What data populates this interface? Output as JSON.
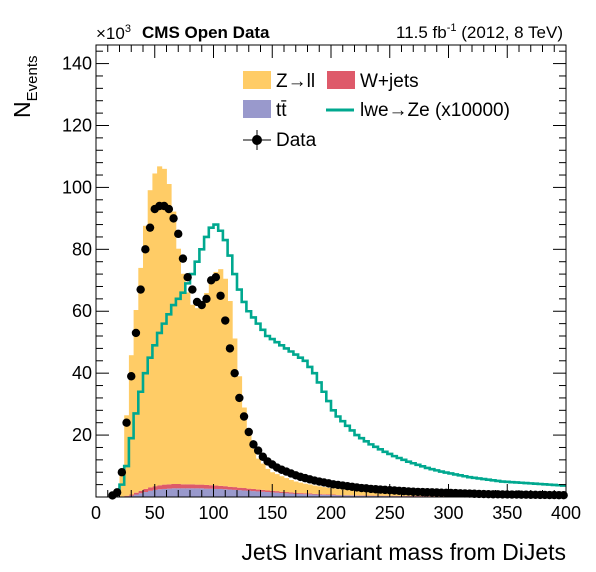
{
  "header": {
    "exp_multiplier": "×10",
    "exp_power": "3",
    "brand": "CMS Open Data",
    "lumi_value": "11.5 fb",
    "lumi_exp": "-1",
    "lumi_rest": " (2012, 8 TeV)"
  },
  "chart_data": {
    "type": "bar",
    "xlabel": "JetS Invariant mass from DiJets",
    "ylabel_main": "N",
    "ylabel_sub": "Events",
    "xlim": [
      0,
      400
    ],
    "ylim": [
      0,
      146
    ],
    "y_unit": "×10^3",
    "bin_width": 4,
    "x_ticks": [
      "0",
      "50",
      "100",
      "150",
      "200",
      "250",
      "300",
      "350",
      "400"
    ],
    "y_ticks": [
      "20",
      "40",
      "60",
      "80",
      "100",
      "120",
      "140"
    ],
    "legend": {
      "zll": "Z→ll",
      "wjets": "W+jets",
      "ttbar": "tt̄",
      "signal": "lwe→Ze (x10000)",
      "data": "Data"
    },
    "legend_placement": "top-center",
    "colors": {
      "zll": "#ffcc66",
      "wjets": "#de5a6a",
      "ttbar": "#9999cc",
      "signal": "#00a88f",
      "data": "#000000"
    },
    "series": [
      {
        "name": "Z→ll",
        "stacked": true,
        "x": [
          22,
          26,
          30,
          34,
          38,
          42,
          46,
          50,
          54,
          58,
          62,
          66,
          70,
          74,
          78,
          82,
          86,
          90,
          94,
          98,
          102,
          106,
          110,
          114,
          118,
          122,
          126,
          130,
          134,
          138,
          142,
          146,
          150,
          154,
          158,
          162,
          166,
          170,
          174,
          178,
          182,
          186,
          190,
          194,
          198,
          202,
          206,
          210,
          214,
          218,
          222,
          226,
          230,
          234,
          238,
          242,
          246,
          250,
          254,
          258,
          262,
          266,
          270,
          274,
          278,
          282,
          286,
          290,
          294,
          298,
          302,
          306,
          310,
          314,
          318,
          322,
          326,
          330,
          334,
          338,
          342,
          346,
          350,
          354,
          358,
          362,
          366,
          370,
          374,
          378,
          382,
          386,
          390,
          394,
          398
        ],
        "values": [
          8,
          26,
          45,
          59,
          72,
          85,
          96,
          101,
          103,
          102,
          97,
          88,
          76,
          68,
          62,
          58,
          57,
          59,
          62,
          66,
          69,
          70,
          67,
          60,
          48,
          36,
          26,
          18,
          13,
          10,
          8.5,
          7,
          6,
          5.5,
          5,
          4.5,
          4,
          3.7,
          3.4,
          3.1,
          2.9,
          2.7,
          2.5,
          2.3,
          2.1,
          2,
          1.9,
          1.8,
          1.7,
          1.6,
          1.5,
          1.45,
          1.4,
          1.35,
          1.3,
          1.25,
          1.2,
          1.15,
          1.1,
          1.05,
          1,
          0.98,
          0.95,
          0.92,
          0.9,
          0.87,
          0.85,
          0.82,
          0.8,
          0.78,
          0.75,
          0.73,
          0.7,
          0.68,
          0.66,
          0.64,
          0.62,
          0.6,
          0.58,
          0.56,
          0.54,
          0.52,
          0.5,
          0.48,
          0.47,
          0.46,
          0.45,
          0.44,
          0.43,
          0.42,
          0.41,
          0.4,
          0.39,
          0.38,
          0.37
        ]
      },
      {
        "name": "W+jets",
        "stacked": true,
        "x": [
          22,
          26,
          30,
          34,
          38,
          42,
          46,
          50,
          54,
          58,
          62,
          66,
          70,
          74,
          78,
          82,
          86,
          90,
          94,
          98,
          102,
          106,
          110,
          114,
          118,
          122,
          126,
          130,
          134,
          138,
          142,
          146,
          150,
          154,
          158,
          162,
          166,
          170,
          174,
          178,
          182,
          186,
          190,
          194,
          198,
          202,
          206,
          210,
          214,
          218,
          222,
          226,
          230,
          234,
          238,
          242,
          246,
          250,
          254,
          258,
          262,
          266,
          270,
          274,
          278,
          282,
          286,
          290,
          294,
          298,
          302,
          306,
          310,
          314,
          318,
          322,
          326,
          330,
          334,
          338,
          342,
          346,
          350,
          354,
          358,
          362,
          366,
          370,
          374,
          378,
          382,
          386,
          390,
          394,
          398
        ],
        "values": [
          0.1,
          0.2,
          0.4,
          0.6,
          0.8,
          1,
          1.1,
          1.2,
          1.3,
          1.4,
          1.4,
          1.4,
          1.4,
          1.3,
          1.3,
          1.3,
          1.2,
          1.2,
          1.2,
          1.1,
          1.1,
          1,
          1,
          0.9,
          0.9,
          0.8,
          0.8,
          0.7,
          0.7,
          0.6,
          0.6,
          0.5,
          0.5,
          0.5,
          0.4,
          0.4,
          0.4,
          0.3,
          0.3,
          0.3,
          0.3,
          0.2,
          0.2,
          0.2,
          0.2,
          0.2,
          0.1,
          0.1,
          0.1,
          0.1,
          0.1,
          0.1,
          0.1,
          0.1,
          0.1,
          0.1,
          0.1,
          0.1,
          0.1,
          0.1,
          0.1,
          0.1,
          0.1,
          0.1,
          0.1,
          0.1,
          0.1,
          0.1,
          0.1,
          0.1,
          0.1,
          0.1,
          0.1,
          0.1,
          0.1,
          0.1,
          0.1,
          0.1,
          0.1,
          0.1,
          0.1,
          0.1,
          0.1,
          0.1,
          0.1,
          0.1,
          0.1,
          0.1,
          0.1,
          0.1,
          0.1,
          0.1,
          0.1,
          0.1,
          0.1
        ]
      },
      {
        "name": "tt̄",
        "stacked": true,
        "x": [
          22,
          26,
          30,
          34,
          38,
          42,
          46,
          50,
          54,
          58,
          62,
          66,
          70,
          74,
          78,
          82,
          86,
          90,
          94,
          98,
          102,
          106,
          110,
          114,
          118,
          122,
          126,
          130,
          134,
          138,
          142,
          146,
          150,
          154,
          158,
          162,
          166,
          170,
          174,
          178,
          182,
          186,
          190,
          194,
          198,
          202,
          206,
          210,
          214,
          218,
          222,
          226,
          230,
          234,
          238,
          242,
          246,
          250,
          254,
          258,
          262,
          266,
          270,
          274,
          278,
          282,
          286,
          290,
          294,
          298,
          302,
          306,
          310,
          314,
          318,
          322,
          326,
          330,
          334,
          338,
          342,
          346,
          350,
          354,
          358,
          362,
          366,
          370,
          374,
          378,
          382,
          386,
          390,
          394,
          398
        ],
        "values": [
          0.1,
          0.2,
          0.4,
          0.8,
          1.2,
          1.6,
          2,
          2.3,
          2.5,
          2.6,
          2.7,
          2.8,
          2.8,
          2.8,
          2.8,
          2.8,
          2.8,
          2.8,
          2.7,
          2.7,
          2.6,
          2.6,
          2.5,
          2.4,
          2.3,
          2.2,
          2.1,
          2,
          1.9,
          1.8,
          1.7,
          1.6,
          1.5,
          1.4,
          1.3,
          1.2,
          1.1,
          1,
          0.95,
          0.9,
          0.85,
          0.8,
          0.75,
          0.7,
          0.65,
          0.6,
          0.55,
          0.5,
          0.48,
          0.45,
          0.42,
          0.4,
          0.38,
          0.36,
          0.34,
          0.32,
          0.3,
          0.28,
          0.27,
          0.26,
          0.25,
          0.24,
          0.23,
          0.22,
          0.21,
          0.2,
          0.19,
          0.18,
          0.17,
          0.16,
          0.15,
          0.15,
          0.14,
          0.14,
          0.13,
          0.13,
          0.12,
          0.12,
          0.11,
          0.11,
          0.1,
          0.1,
          0.1,
          0.1,
          0.1,
          0.1,
          0.1,
          0.1,
          0.1,
          0.1,
          0.1,
          0.1,
          0.1,
          0.1,
          0.1
        ]
      },
      {
        "name": "lwe→Ze (x10000)",
        "type": "step",
        "x": [
          14,
          18,
          22,
          26,
          30,
          34,
          38,
          42,
          46,
          50,
          54,
          58,
          62,
          66,
          70,
          74,
          78,
          82,
          86,
          90,
          94,
          98,
          102,
          106,
          110,
          114,
          118,
          122,
          126,
          130,
          134,
          138,
          142,
          146,
          150,
          154,
          158,
          162,
          166,
          170,
          174,
          178,
          182,
          186,
          190,
          194,
          198,
          202,
          206,
          210,
          214,
          218,
          222,
          226,
          230,
          234,
          238,
          242,
          246,
          250,
          254,
          258,
          262,
          266,
          270,
          274,
          278,
          282,
          286,
          290,
          294,
          298,
          302,
          306,
          310,
          314,
          318,
          322,
          326,
          330,
          334,
          338,
          342,
          346,
          350,
          354,
          358,
          362,
          366,
          370,
          374,
          378,
          382,
          386,
          390,
          394,
          398
        ],
        "values": [
          0.5,
          1.5,
          4,
          10,
          19,
          27,
          34,
          40,
          45,
          49,
          53,
          56,
          59,
          62,
          64,
          66,
          69,
          72,
          76,
          80,
          84,
          87,
          88,
          86,
          83,
          78,
          72,
          67,
          63,
          60,
          58,
          56,
          54,
          52,
          51,
          50,
          49,
          48,
          47,
          46,
          45,
          44,
          42,
          40,
          37,
          34,
          31,
          28,
          26,
          24.5,
          23,
          21.5,
          20,
          19,
          18,
          17,
          16.2,
          15.4,
          14.6,
          13.9,
          13.2,
          12.6,
          12,
          11.4,
          10.9,
          10.4,
          9.9,
          9.4,
          9,
          8.6,
          8.2,
          7.9,
          7.6,
          7.3,
          7,
          6.7,
          6.4,
          6.2,
          6,
          5.8,
          5.6,
          5.4,
          5.2,
          5,
          4.9,
          4.8,
          4.7,
          4.6,
          4.5,
          4.4,
          4.3,
          4.2,
          4.1,
          4,
          3.9,
          3.8,
          3.7
        ]
      },
      {
        "name": "Data",
        "type": "points",
        "x": [
          14,
          18,
          22,
          26,
          30,
          34,
          38,
          42,
          46,
          50,
          54,
          58,
          62,
          66,
          70,
          74,
          78,
          82,
          86,
          90,
          94,
          98,
          102,
          106,
          110,
          114,
          118,
          122,
          126,
          130,
          134,
          138,
          142,
          146,
          150,
          154,
          158,
          162,
          166,
          170,
          174,
          178,
          182,
          186,
          190,
          194,
          198,
          202,
          206,
          210,
          214,
          218,
          222,
          226,
          230,
          234,
          238,
          242,
          246,
          250,
          254,
          258,
          262,
          266,
          270,
          274,
          278,
          282,
          286,
          290,
          294,
          298,
          302,
          306,
          310,
          314,
          318,
          322,
          326,
          330,
          334,
          338,
          342,
          346,
          350,
          354,
          358,
          362,
          366,
          370,
          374,
          378,
          382,
          386,
          390,
          394,
          398
        ],
        "values": [
          0.5,
          1.5,
          8,
          24,
          39,
          53,
          67,
          80,
          87,
          93,
          94,
          94,
          93,
          90,
          85,
          77,
          71,
          67,
          63,
          62,
          64,
          70,
          71,
          65,
          57,
          48,
          40,
          32,
          26,
          21,
          17,
          15,
          13,
          11.5,
          10.5,
          9.5,
          8.8,
          8.2,
          7.6,
          7,
          6.5,
          6.1,
          5.7,
          5.3,
          5,
          4.7,
          4.4,
          4.1,
          3.9,
          3.7,
          3.5,
          3.3,
          3.1,
          2.9,
          2.8,
          2.6,
          2.5,
          2.4,
          2.3,
          2.2,
          2.1,
          2,
          1.9,
          1.8,
          1.7,
          1.65,
          1.6,
          1.55,
          1.5,
          1.45,
          1.4,
          1.35,
          1.3,
          1.25,
          1.2,
          1.15,
          1.1,
          1.05,
          1,
          0.95,
          0.9,
          0.88,
          0.86,
          0.84,
          0.82,
          0.8,
          0.78,
          0.76,
          0.74,
          0.72,
          0.7,
          0.68,
          0.66,
          0.64,
          0.62,
          0.6,
          0.58
        ]
      }
    ]
  }
}
